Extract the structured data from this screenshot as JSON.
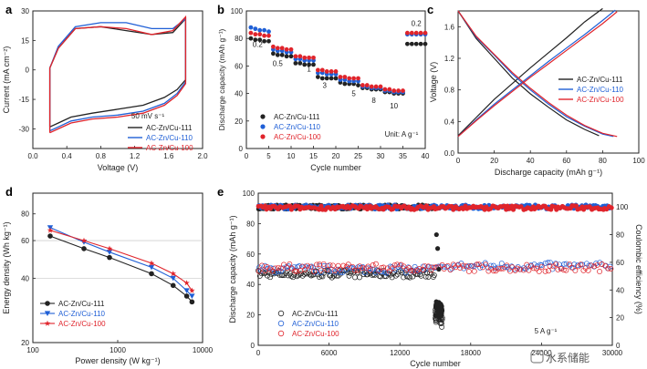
{
  "colors": {
    "black": "#222222",
    "blue": "#1f5fd6",
    "red": "#e0242b",
    "axis": "#222222"
  },
  "panels": {
    "a": "a",
    "b": "b",
    "c": "c",
    "d": "d",
    "e": "e"
  },
  "watermark": "水系储能",
  "chart_data": [
    {
      "panel": "a",
      "type": "line",
      "xlabel": "Voltage (V)",
      "ylabel": "Current (mA cm⁻²)",
      "xlim": [
        0.0,
        2.0
      ],
      "ylim": [
        -40,
        30
      ],
      "xticks": [
        "0.0",
        "0.4",
        "0.8",
        "1.2",
        "1.6",
        "2.0"
      ],
      "yticks": [
        "-30",
        "-15",
        "0",
        "15",
        "30"
      ],
      "annotation": "50 mV s⁻¹",
      "legend": "bottom-right",
      "series": [
        {
          "name": "AC-Zn/Cu-111",
          "color": "black",
          "x": [
            0.2,
            0.3,
            0.45,
            0.7,
            1.0,
            1.3,
            1.55,
            1.7,
            1.8,
            1.8,
            1.65,
            1.4,
            1.1,
            0.8,
            0.5,
            0.3,
            0.2,
            0.2
          ],
          "y": [
            -29,
            -27,
            -24,
            -22,
            -20,
            -18,
            -14,
            -10,
            -5,
            26,
            19,
            18,
            20,
            22,
            21,
            11,
            1,
            -29
          ]
        },
        {
          "name": "AC-Zn/Cu-110",
          "color": "blue",
          "x": [
            0.2,
            0.3,
            0.45,
            0.7,
            1.0,
            1.3,
            1.55,
            1.7,
            1.8,
            1.8,
            1.65,
            1.4,
            1.1,
            0.8,
            0.5,
            0.3,
            0.2,
            0.2
          ],
          "y": [
            -31,
            -29,
            -26,
            -24,
            -23,
            -21,
            -17,
            -12,
            -6,
            26,
            21,
            21,
            24,
            24,
            22,
            12,
            1,
            -31
          ]
        },
        {
          "name": "AC-Zn/Cu-100",
          "color": "red",
          "x": [
            0.2,
            0.3,
            0.45,
            0.7,
            1.0,
            1.3,
            1.55,
            1.7,
            1.8,
            1.8,
            1.65,
            1.4,
            1.1,
            0.8,
            0.5,
            0.3,
            0.2,
            0.2
          ],
          "y": [
            -32,
            -30,
            -27,
            -25,
            -24,
            -22,
            -18,
            -13,
            -7,
            27,
            20,
            18,
            21,
            22,
            21,
            11,
            1,
            -32
          ]
        }
      ]
    },
    {
      "panel": "b",
      "type": "scatter",
      "xlabel": "Cycle number",
      "ylabel": "Discharge capacity (mAh g⁻¹)",
      "xlim": [
        0,
        40
      ],
      "ylim": [
        0,
        100
      ],
      "xticks": [
        "0",
        "5",
        "10",
        "15",
        "20",
        "25",
        "30",
        "35",
        "40"
      ],
      "yticks": [
        "0",
        "20",
        "40",
        "60",
        "80",
        "100"
      ],
      "rate_labels": [
        {
          "text": "0.2",
          "x": 2.5,
          "y": 74
        },
        {
          "text": "0.5",
          "x": 7,
          "y": 60
        },
        {
          "text": "1",
          "x": 14,
          "y": 56
        },
        {
          "text": "3",
          "x": 17.5,
          "y": 44
        },
        {
          "text": "5",
          "x": 24,
          "y": 38
        },
        {
          "text": "8",
          "x": 28.5,
          "y": 33
        },
        {
          "text": "10",
          "x": 33,
          "y": 29
        },
        {
          "text": "0.2",
          "x": 38,
          "y": 89
        }
      ],
      "unit_note": "Unit: A g⁻¹",
      "legend": "bottom-left",
      "series": [
        {
          "name": "AC-Zn/Cu-111",
          "color": "black",
          "x": [
            1,
            2,
            3,
            4,
            5,
            6,
            7,
            8,
            9,
            10,
            11,
            12,
            13,
            14,
            15,
            16,
            17,
            18,
            19,
            20,
            21,
            22,
            23,
            24,
            25,
            26,
            27,
            28,
            29,
            30,
            31,
            32,
            33,
            34,
            35,
            36,
            37,
            38,
            39,
            40
          ],
          "y": [
            80,
            79,
            79,
            78,
            78,
            69,
            68,
            68,
            67,
            67,
            62,
            62,
            61,
            61,
            61,
            52,
            51,
            51,
            51,
            51,
            48,
            47,
            47,
            47,
            46,
            44,
            44,
            43,
            43,
            43,
            41,
            41,
            40,
            40,
            40,
            76,
            76,
            76,
            76,
            76
          ]
        },
        {
          "name": "AC-Zn/Cu-110",
          "color": "blue",
          "x": [
            1,
            2,
            3,
            4,
            5,
            6,
            7,
            8,
            9,
            10,
            11,
            12,
            13,
            14,
            15,
            16,
            17,
            18,
            19,
            20,
            21,
            22,
            23,
            24,
            25,
            26,
            27,
            28,
            29,
            30,
            31,
            32,
            33,
            34,
            35,
            36,
            37,
            38,
            39,
            40
          ],
          "y": [
            88,
            87,
            86,
            86,
            85,
            72,
            71,
            71,
            70,
            70,
            65,
            65,
            64,
            64,
            64,
            55,
            55,
            54,
            54,
            54,
            50,
            50,
            49,
            49,
            49,
            45,
            45,
            44,
            44,
            44,
            42,
            42,
            41,
            41,
            41,
            83,
            83,
            83,
            83,
            83
          ]
        },
        {
          "name": "AC-Zn/Cu-100",
          "color": "red",
          "x": [
            1,
            2,
            3,
            4,
            5,
            6,
            7,
            8,
            9,
            10,
            11,
            12,
            13,
            14,
            15,
            16,
            17,
            18,
            19,
            20,
            21,
            22,
            23,
            24,
            25,
            26,
            27,
            28,
            29,
            30,
            31,
            32,
            33,
            34,
            35,
            36,
            37,
            38,
            39,
            40
          ],
          "y": [
            84,
            83,
            83,
            82,
            82,
            74,
            73,
            73,
            72,
            72,
            67,
            67,
            66,
            66,
            66,
            57,
            57,
            56,
            56,
            56,
            52,
            52,
            51,
            51,
            51,
            46,
            46,
            45,
            45,
            45,
            43,
            43,
            42,
            42,
            42,
            84,
            84,
            84,
            84,
            84
          ]
        }
      ]
    },
    {
      "panel": "c",
      "type": "line",
      "xlabel": "Discharge capacity (mAh g⁻¹)",
      "ylabel": "Voltage (V)",
      "xlim": [
        0,
        100
      ],
      "ylim": [
        0.0,
        1.8
      ],
      "xticks": [
        "0",
        "20",
        "40",
        "60",
        "80",
        "100"
      ],
      "yticks": [
        "0.0",
        "0.4",
        "0.8",
        "1.2",
        "1.6"
      ],
      "legend": "middle-right",
      "series": [
        {
          "name": "AC-Zn/Cu-111",
          "color": "black",
          "x": [
            0,
            10,
            20,
            30,
            40,
            50,
            60,
            70,
            78,
            null,
            0,
            10,
            20,
            30,
            40,
            50,
            60,
            70,
            80
          ],
          "y": [
            1.8,
            1.45,
            1.2,
            0.95,
            0.75,
            0.58,
            0.42,
            0.3,
            0.22,
            null,
            0.22,
            0.45,
            0.68,
            0.88,
            1.08,
            1.27,
            1.46,
            1.66,
            1.83
          ]
        },
        {
          "name": "AC-Zn/Cu-110",
          "color": "blue",
          "x": [
            0,
            10,
            20,
            30,
            40,
            50,
            60,
            70,
            80,
            86,
            null,
            0,
            10,
            20,
            30,
            40,
            50,
            60,
            70,
            80,
            87
          ],
          "y": [
            1.8,
            1.47,
            1.24,
            1.0,
            0.8,
            0.62,
            0.46,
            0.34,
            0.24,
            0.21,
            null,
            0.21,
            0.42,
            0.62,
            0.8,
            0.98,
            1.16,
            1.33,
            1.5,
            1.68,
            1.81
          ]
        },
        {
          "name": "AC-Zn/Cu-100",
          "color": "red",
          "x": [
            0,
            10,
            20,
            30,
            40,
            50,
            60,
            70,
            80,
            88,
            null,
            0,
            10,
            20,
            30,
            40,
            50,
            60,
            70,
            80,
            88
          ],
          "y": [
            1.8,
            1.48,
            1.25,
            1.02,
            0.82,
            0.64,
            0.48,
            0.35,
            0.25,
            0.21,
            null,
            0.21,
            0.41,
            0.6,
            0.78,
            0.96,
            1.13,
            1.3,
            1.47,
            1.64,
            1.79
          ]
        }
      ]
    },
    {
      "panel": "d",
      "type": "line",
      "xlabel": "Power density (W kg⁻¹)",
      "ylabel": "Energy density (Wh kg⁻¹)",
      "xscale": "log",
      "yscale": "log",
      "xlim": [
        100,
        10000
      ],
      "ylim": [
        20,
        100
      ],
      "xticks": [
        {
          "v": 100,
          "t": "100"
        },
        {
          "v": 1000,
          "t": "1000"
        },
        {
          "v": 10000,
          "t": "10000"
        }
      ],
      "yticks": [
        {
          "v": 20,
          "t": "20"
        },
        {
          "v": 40,
          "t": "40"
        },
        {
          "v": 60,
          "t": "60"
        },
        {
          "v": 80,
          "t": "80"
        }
      ],
      "legend": "bottom-left",
      "series": [
        {
          "name": "AC-Zn/Cu-111",
          "color": "black",
          "marker": "circle",
          "x": [
            160,
            400,
            800,
            2500,
            4500,
            6500,
            7500
          ],
          "y": [
            63,
            55,
            50,
            42,
            37,
            33,
            31
          ]
        },
        {
          "name": "AC-Zn/Cu-110",
          "color": "blue",
          "marker": "triangle-down",
          "x": [
            160,
            400,
            800,
            2500,
            4500,
            6500,
            7500
          ],
          "y": [
            69,
            59,
            53,
            45,
            40,
            35,
            33
          ]
        },
        {
          "name": "AC-Zn/Cu-100",
          "color": "red",
          "marker": "star",
          "x": [
            160,
            400,
            800,
            2500,
            4500,
            6500,
            7500
          ],
          "y": [
            67,
            60,
            55,
            47,
            42,
            38,
            35
          ]
        }
      ]
    },
    {
      "panel": "e",
      "type": "scatter",
      "xlabel": "Cycle number",
      "ylabel": "Discharge capacity (mAh g⁻¹)",
      "y2label": "Coulombic efficiency (%)",
      "xlim": [
        0,
        30000
      ],
      "ylim": [
        0,
        100
      ],
      "y2lim": [
        0,
        110
      ],
      "xticks": [
        "0",
        "6000",
        "12000",
        "18000",
        "24000",
        "30000"
      ],
      "yticks": [
        "0",
        "20",
        "40",
        "60",
        "80",
        "100"
      ],
      "y2ticks": [
        "0",
        "20",
        "40",
        "60",
        "80",
        "100"
      ],
      "current_note": "5 A g⁻¹",
      "legend": "bottom-left",
      "series": [
        {
          "name": "AC-Zn/Cu-111",
          "color": "black",
          "capacity_level": 47,
          "ce_level": 100,
          "end_cycle": 15600,
          "fail_start": 15000
        },
        {
          "name": "AC-Zn/Cu-110",
          "color": "blue",
          "capacity_level": 50,
          "ce_level": 100,
          "end_cycle": 30000
        },
        {
          "name": "AC-Zn/Cu-100",
          "color": "red",
          "capacity_level": 51,
          "ce_level": 99.5,
          "end_cycle": 30000
        }
      ]
    }
  ]
}
